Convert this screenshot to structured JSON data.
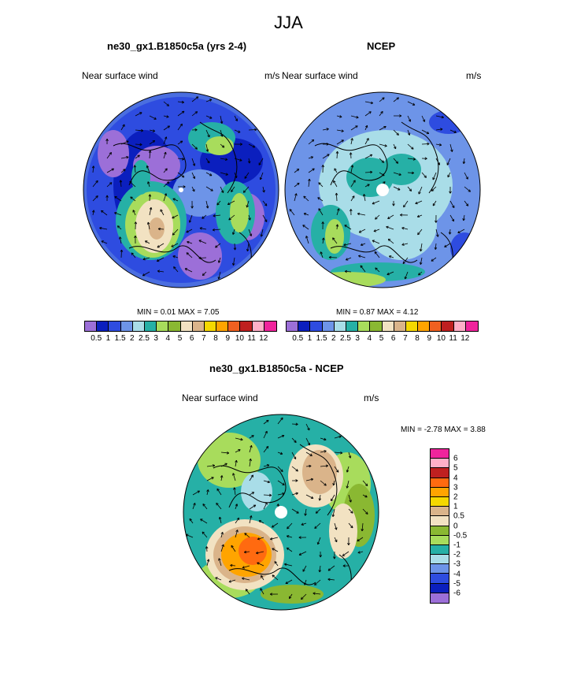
{
  "title": "JJA",
  "panels": [
    {
      "title": "ne30_gx1.B1850c5a (yrs 2-4)",
      "left_label": "Near surface wind",
      "right_label": "m/s",
      "stats": "MIN =   0.01 MAX =   7.05",
      "map": {
        "base": "#4a6ee0",
        "scheme": "model"
      }
    },
    {
      "title": "NCEP",
      "left_label": "Near surface wind",
      "right_label": "m/s",
      "stats": "MIN =   0.87 MAX =   4.12",
      "map": {
        "base": "#6d94e8",
        "scheme": "obs"
      }
    },
    {
      "title": "ne30_gx1.B1850c5a - NCEP",
      "left_label": "Near surface wind",
      "right_label": "m/s",
      "stats": "MIN =  -2.78 MAX =   3.88",
      "map": {
        "base": "#26b0a6",
        "scheme": "diff"
      }
    }
  ],
  "abs_colorbar": {
    "colors": [
      "#9c6fd8",
      "#0b1fbe",
      "#2e4ce0",
      "#6d94e8",
      "#a9dde8",
      "#26b0a6",
      "#a8dc5c",
      "#8ab832",
      "#f2e2c2",
      "#dab48a",
      "#f5d800",
      "#ffa400",
      "#f06020",
      "#bf2020",
      "#ffb0c8",
      "#f0249c"
    ],
    "labels": [
      "0.5",
      "1",
      "1.5",
      "2",
      "2.5",
      "3",
      "4",
      "5",
      "6",
      "7",
      "8",
      "9",
      "10",
      "11",
      "12"
    ]
  },
  "diff_colorbar": {
    "colors": [
      "#f0249c",
      "#ffb0c8",
      "#bf2020",
      "#ff6a10",
      "#ffa400",
      "#f5d800",
      "#dab48a",
      "#f2e2c2",
      "#8ab832",
      "#a8dc5c",
      "#26b0a6",
      "#a9dde8",
      "#6d94e8",
      "#2e4ce0",
      "#0b1fbe",
      "#9c6fd8"
    ],
    "labels": [
      "6",
      "5",
      "4",
      "3",
      "2",
      "1",
      "0.5",
      "0",
      "-0.5",
      "-1",
      "-2",
      "-3",
      "-4",
      "-5",
      "-6"
    ]
  }
}
